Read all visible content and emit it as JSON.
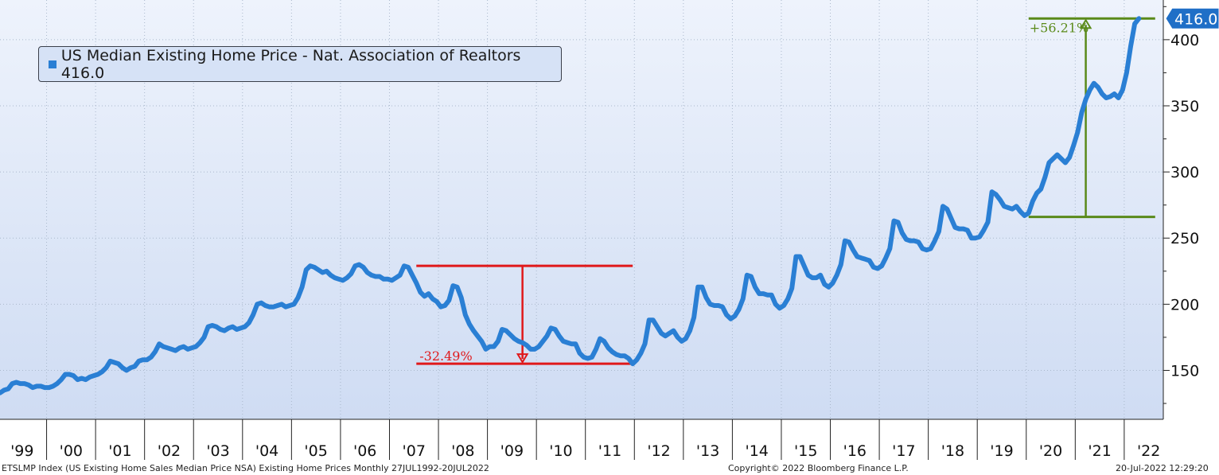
{
  "chart_data": {
    "type": "line",
    "x_start": "1999-01",
    "period": "monthly",
    "ylim": [
      113,
      430
    ],
    "yticks": [
      150,
      200,
      250,
      300,
      350,
      400
    ],
    "ytick_labels": [
      "150",
      "200",
      "250",
      "300",
      "350",
      "400"
    ],
    "xtick_labels": [
      "'99",
      "'00",
      "'01",
      "'02",
      "'03",
      "'04",
      "'05",
      "'06",
      "'07",
      "'08",
      "'09",
      "'10",
      "'11",
      "'12",
      "'13",
      "'14",
      "'15",
      "'16",
      "'17",
      "'18",
      "'19",
      "'20",
      "'21",
      "'22"
    ],
    "grid": true,
    "legend_position": "top-left",
    "series": [
      {
        "name": "US Median Existing Home Price - Nat. Association of Realtors 416.0",
        "color": "#2a7fd4",
        "last_value_label": "416.0",
        "values": [
          133,
          135,
          136,
          140,
          141,
          140,
          140,
          139,
          137,
          138,
          138,
          137,
          137,
          138,
          140,
          143,
          147,
          147,
          146,
          143,
          144,
          143,
          145,
          146,
          147,
          149,
          152,
          157,
          156,
          155,
          152,
          150,
          152,
          153,
          157,
          158,
          158,
          160,
          164,
          170,
          168,
          167,
          166,
          165,
          167,
          168,
          166,
          167,
          168,
          171,
          175,
          183,
          184,
          183,
          181,
          180,
          182,
          183,
          181,
          182,
          183,
          186,
          192,
          200,
          201,
          199,
          198,
          198,
          199,
          200,
          198,
          199,
          200,
          205,
          213,
          226,
          229,
          228,
          226,
          224,
          225,
          222,
          220,
          219,
          218,
          220,
          223,
          229,
          230,
          228,
          224,
          222,
          221,
          221,
          219,
          219,
          218,
          220,
          222,
          229,
          228,
          222,
          216,
          209,
          206,
          208,
          204,
          202,
          198,
          199,
          203,
          214,
          213,
          205,
          192,
          185,
          180,
          176,
          172,
          166,
          168,
          168,
          172,
          181,
          180,
          177,
          174,
          172,
          171,
          169,
          166,
          166,
          168,
          172,
          176,
          182,
          181,
          176,
          172,
          171,
          170,
          170,
          163,
          160,
          159,
          160,
          166,
          174,
          172,
          167,
          164,
          162,
          161,
          161,
          159,
          155,
          158,
          163,
          170,
          188,
          188,
          183,
          178,
          176,
          178,
          180,
          175,
          172,
          174,
          180,
          190,
          213,
          213,
          205,
          200,
          199,
          199,
          198,
          192,
          189,
          191,
          196,
          204,
          222,
          221,
          213,
          208,
          208,
          207,
          207,
          200,
          197,
          199,
          204,
          212,
          236,
          236,
          229,
          222,
          220,
          220,
          222,
          215,
          213,
          216,
          222,
          230,
          248,
          247,
          241,
          236,
          235,
          234,
          233,
          228,
          227,
          229,
          235,
          242,
          263,
          262,
          254,
          249,
          248,
          248,
          247,
          242,
          241,
          242,
          248,
          255,
          274,
          272,
          265,
          258,
          257,
          257,
          256,
          250,
          250,
          251,
          256,
          262,
          285,
          283,
          279,
          274,
          273,
          272,
          274,
          270,
          267,
          269,
          278,
          284,
          287,
          296,
          307,
          310,
          313,
          310,
          307,
          311,
          320,
          330,
          345,
          355,
          362,
          367,
          364,
          359,
          356,
          357,
          359,
          356,
          362,
          375,
          395,
          412,
          416
        ]
      }
    ],
    "annotations": [
      {
        "label": "-32.49%",
        "from": 229,
        "to": 155,
        "color": "#e0191b"
      },
      {
        "label": "+56.21%",
        "from": 266,
        "to": 416,
        "color": "#5a8a1a"
      }
    ]
  },
  "footer": {
    "source": "ETSLMP Index (US Existing Home Sales Median Price NSA) Existing Home Prices  Monthly 27JUL1992-20JUL2022",
    "copyright": "Copyright© 2022 Bloomberg Finance L.P.",
    "timestamp": "20-Jul-2022 12:29:20"
  }
}
